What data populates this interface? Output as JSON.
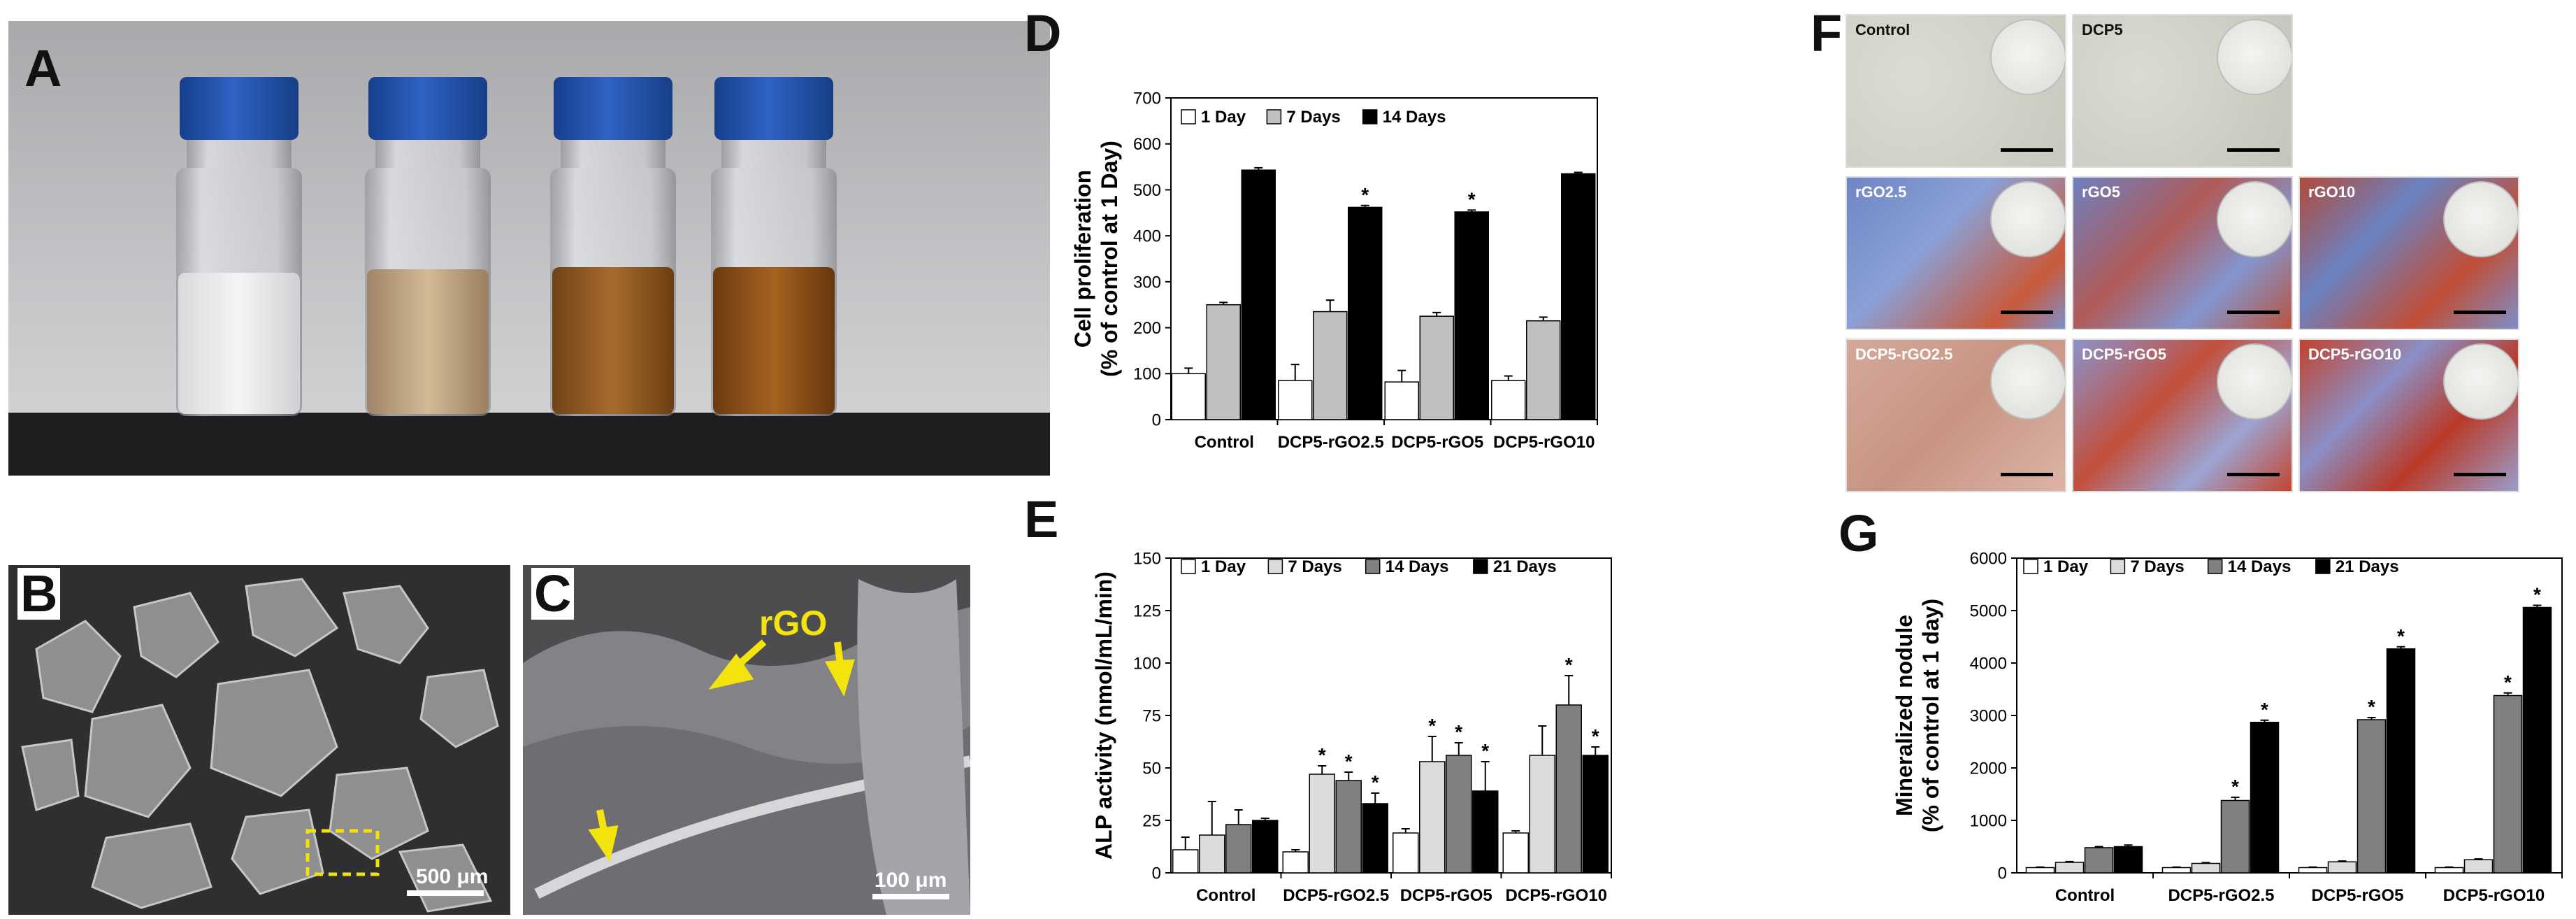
{
  "figure": {
    "panel_letters": [
      "A",
      "B",
      "C",
      "D",
      "E",
      "F",
      "G"
    ],
    "sem": {
      "b_scale": "500 μm",
      "c_scale": "100 μm",
      "c_label": "rGO"
    },
    "microscopy": {
      "tiles": [
        {
          "label": "Control"
        },
        {
          "label": "DCP5"
        },
        {
          "label": "rGO2.5"
        },
        {
          "label": "rGO5"
        },
        {
          "label": "rGO10"
        },
        {
          "label": "DCP5-rGO2.5"
        },
        {
          "label": "DCP5-rGO5"
        },
        {
          "label": "DCP5-rGO10"
        }
      ]
    },
    "colors": {
      "day1": "#ffffff",
      "day7": "#c0c0c0",
      "day14": "#000000",
      "day14_4": "#808080",
      "day21": "#000000",
      "vial_cap": "#1f4fa8"
    }
  },
  "chart_data": [
    {
      "panel": "D",
      "type": "bar",
      "categories": [
        "Control",
        "DCP5-rGO2.5",
        "DCP5-rGO5",
        "DCP5-rGO10"
      ],
      "series": [
        {
          "name": "1 Day",
          "values": [
            100,
            85,
            82,
            85
          ],
          "errors": [
            12,
            35,
            25,
            10
          ]
        },
        {
          "name": "7 Days",
          "values": [
            250,
            235,
            225,
            215
          ],
          "errors": [
            5,
            25,
            8,
            8
          ]
        },
        {
          "name": "14 Days",
          "values": [
            543,
            462,
            452,
            535
          ],
          "errors": [
            5,
            4,
            4,
            3
          ]
        }
      ],
      "significance": [
        "",
        "*",
        "*",
        ""
      ],
      "ylabel_line1": "Cell proliferation",
      "ylabel_line2": "(% of control at 1 Day)",
      "ylim": [
        0,
        700
      ],
      "yticks": [
        0,
        100,
        200,
        300,
        400,
        500,
        600,
        700
      ],
      "legend_position": "top-left"
    },
    {
      "panel": "E",
      "type": "bar",
      "categories": [
        "Control",
        "DCP5-rGO2.5",
        "DCP5-rGO5",
        "DCP5-rGO10"
      ],
      "series": [
        {
          "name": "1 Day",
          "values": [
            11,
            10,
            19,
            19
          ],
          "errors": [
            6,
            1,
            2,
            1
          ]
        },
        {
          "name": "7 Days",
          "values": [
            18,
            47,
            53,
            56
          ],
          "errors": [
            16,
            4,
            12,
            14
          ]
        },
        {
          "name": "14 Days",
          "values": [
            23,
            44,
            56,
            80
          ],
          "errors": [
            7,
            4,
            6,
            14
          ]
        },
        {
          "name": "21 Days",
          "values": [
            25,
            33,
            39,
            56
          ],
          "errors": [
            1,
            5,
            14,
            4
          ]
        }
      ],
      "significance": [
        [
          "",
          "",
          "",
          ""
        ],
        [
          "",
          "*",
          "*",
          ""
        ],
        [
          "",
          "*",
          "*",
          "*"
        ],
        [
          "",
          "*",
          "*",
          "*"
        ]
      ],
      "ylabel": "ALP activity (nmol/mL/min)",
      "ylim": [
        0,
        150
      ],
      "yticks": [
        0,
        25,
        50,
        75,
        100,
        125,
        150
      ],
      "legend_position": "top-left"
    },
    {
      "panel": "G",
      "type": "bar",
      "categories": [
        "Control",
        "DCP5-rGO2.5",
        "DCP5-rGO5",
        "DCP5-rGO10"
      ],
      "series": [
        {
          "name": "1 Day",
          "values": [
            100,
            100,
            100,
            100
          ],
          "errors": [
            10,
            10,
            10,
            10
          ]
        },
        {
          "name": "7 Days",
          "values": [
            200,
            180,
            210,
            250
          ],
          "errors": [
            15,
            15,
            15,
            15
          ]
        },
        {
          "name": "14 Days",
          "values": [
            480,
            1380,
            2920,
            3380
          ],
          "errors": [
            20,
            60,
            40,
            50
          ]
        },
        {
          "name": "21 Days",
          "values": [
            500,
            2870,
            4270,
            5060
          ],
          "errors": [
            30,
            40,
            40,
            40
          ]
        }
      ],
      "significance": [
        [
          "",
          "",
          "",
          ""
        ],
        [
          "",
          "",
          "",
          ""
        ],
        [
          "",
          "*",
          "*",
          "*"
        ],
        [
          "",
          "*",
          "*",
          "*"
        ]
      ],
      "ylabel_line1": "Mineralized nodule",
      "ylabel_line2": "(% of control at 1 day)",
      "ylim": [
        0,
        6000
      ],
      "yticks": [
        0,
        1000,
        2000,
        3000,
        4000,
        5000,
        6000
      ],
      "legend_position": "top-left"
    }
  ]
}
